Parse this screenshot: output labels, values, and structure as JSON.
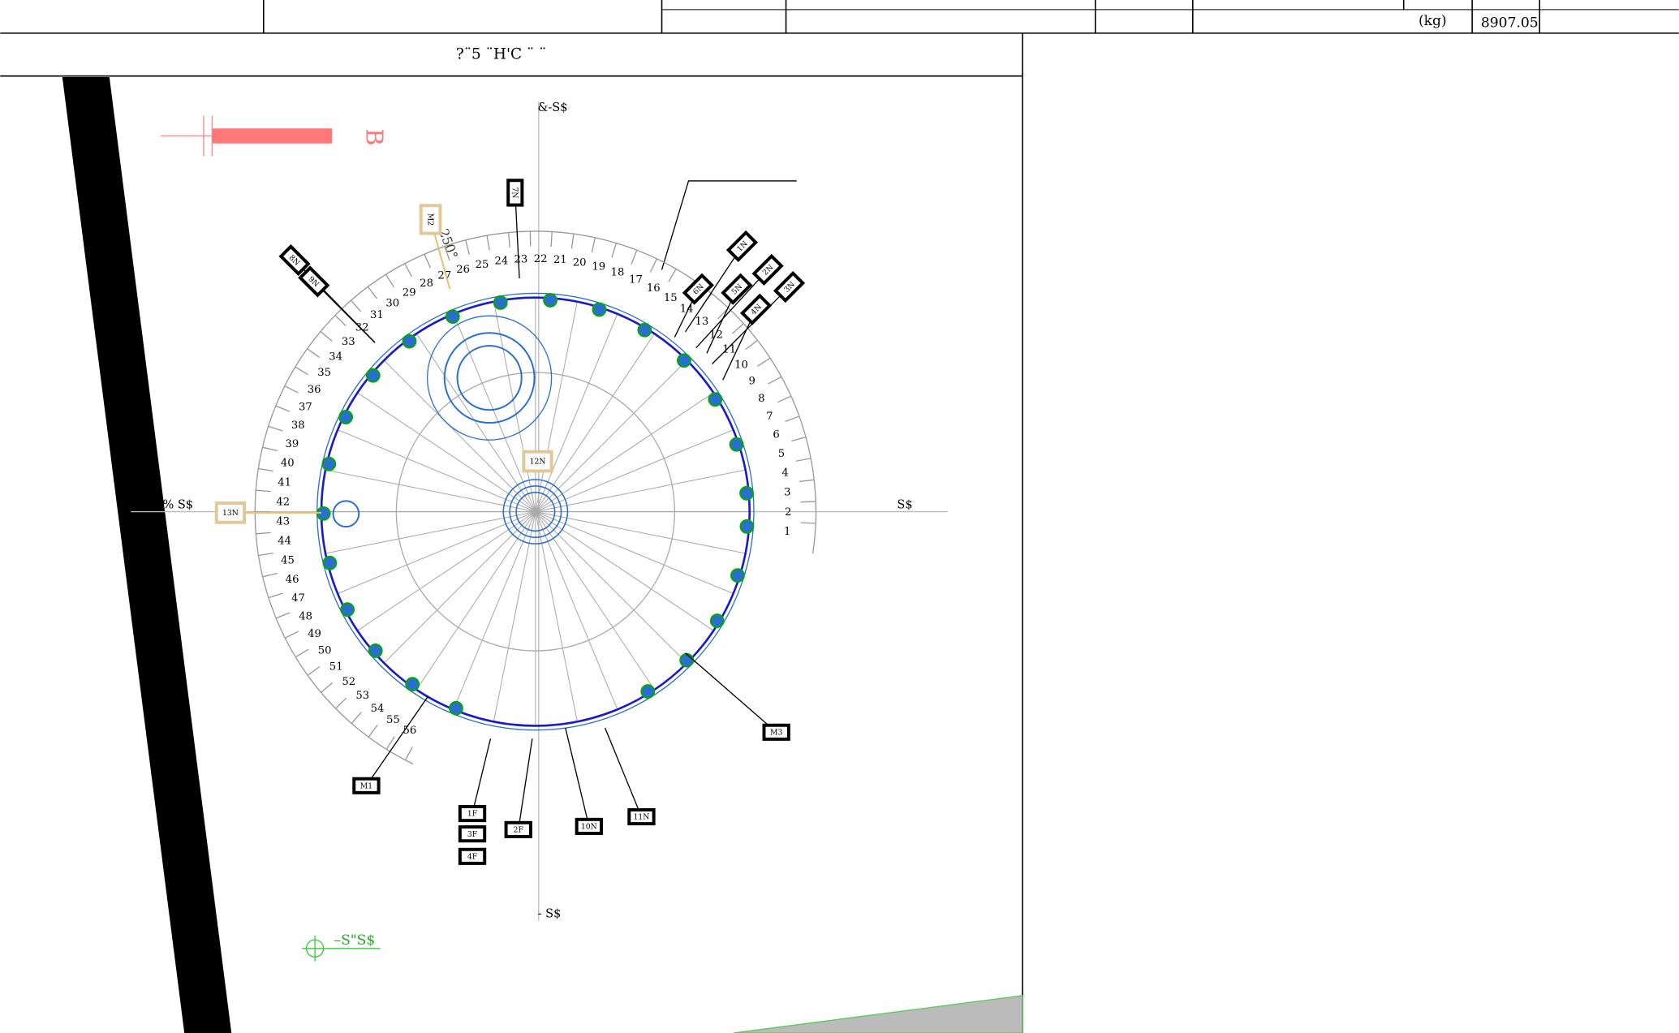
{
  "header": {
    "weight_unit": "(kg)",
    "weight_value": "8907.05"
  },
  "drawing": {
    "title": "?¨5 ¨H'C ¨  ¨",
    "marker": "B",
    "angle_label": "250°",
    "axis_labels": {
      "top": "&-S$",
      "right": "S$",
      "left": "% S$",
      "bottom": "- S$"
    },
    "legend": "–S\"S$",
    "ring_numbers": [
      1,
      2,
      3,
      4,
      5,
      6,
      7,
      8,
      9,
      10,
      11,
      12,
      13,
      14,
      15,
      16,
      17,
      18,
      19,
      20,
      21,
      22,
      23,
      24,
      25,
      26,
      27,
      28,
      29,
      30,
      31,
      32,
      33,
      34,
      35,
      36,
      37,
      38,
      39,
      40,
      41,
      42,
      43,
      44,
      45,
      46,
      47,
      48,
      49,
      50,
      51,
      52,
      53,
      54,
      55,
      56
    ],
    "tags": [
      "7N",
      "8N",
      "9N",
      "1N",
      "2N",
      "3N",
      "4N",
      "5N",
      "6N",
      "M3",
      "M1",
      "1F",
      "3F",
      "4F",
      "2F",
      "10N",
      "11N"
    ],
    "boxed_tags": [
      "M2",
      "12N",
      "13N"
    ]
  }
}
